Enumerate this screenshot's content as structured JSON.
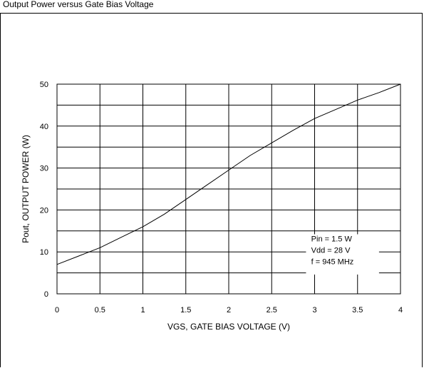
{
  "header": {
    "text": "Output Power versus Gate Bias Voltage"
  },
  "chart_data": {
    "type": "line",
    "title": "",
    "xlabel": "VGS, GATE BIAS VOLTAGE (V)",
    "ylabel": "Pout, OUTPUT POWER (W)",
    "xlim": [
      0,
      4
    ],
    "ylim": [
      0,
      50
    ],
    "x_ticks": [
      "0",
      "0.5",
      "1",
      "1.5",
      "2",
      "2.5",
      "3",
      "3.5",
      "4"
    ],
    "y_ticks": [
      "0",
      "10",
      "20",
      "30",
      "40",
      "50"
    ],
    "grid": true,
    "series": [
      {
        "x": [
          0,
          0.25,
          0.5,
          0.75,
          1.0,
          1.25,
          1.5,
          1.75,
          2.0,
          2.25,
          2.5,
          2.75,
          3.0,
          3.25,
          3.5,
          3.75,
          4.0
        ],
        "y": [
          7.0,
          9.0,
          11.0,
          13.5,
          16.0,
          19.0,
          22.5,
          26.0,
          29.5,
          33.0,
          36.0,
          39.0,
          41.8,
          44.0,
          46.2,
          48.0,
          50.0
        ],
        "color": "#000000"
      }
    ],
    "annotations": [
      "Pin = 1.5 W",
      "Vdd = 28 V",
      "f = 945 MHz"
    ]
  }
}
